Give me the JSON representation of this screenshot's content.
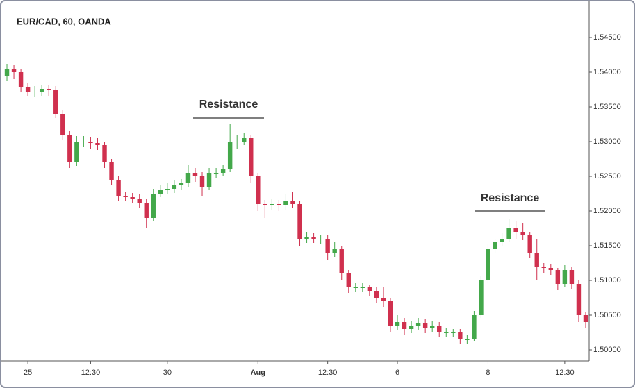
{
  "chart_data": {
    "type": "candlestick",
    "title": "EUR/CAD, 60, OANDA",
    "annotations": [
      "Resistance",
      "Resistance"
    ],
    "up_color": "#43a84a",
    "down_color": "#d0304e",
    "categories": [
      null,
      null,
      null,
      "25",
      null,
      null,
      null,
      null,
      null,
      null,
      null,
      null,
      "12:30",
      null,
      null,
      null,
      null,
      null,
      null,
      null,
      null,
      null,
      null,
      "30",
      null,
      null,
      null,
      null,
      null,
      null,
      null,
      null,
      null,
      null,
      null,
      null,
      "Aug",
      null,
      null,
      null,
      null,
      null,
      null,
      null,
      null,
      null,
      "12:30",
      null,
      null,
      null,
      null,
      null,
      null,
      null,
      null,
      null,
      "6",
      null,
      null,
      null,
      null,
      null,
      null,
      null,
      null,
      null,
      null,
      null,
      null,
      "8",
      null,
      null,
      null,
      null,
      null,
      null,
      null,
      null,
      null,
      null,
      "12:30",
      null,
      null,
      null
    ],
    "series": [
      {
        "open": [
          1.5395,
          1.5405,
          1.54,
          1.5378,
          1.5372,
          1.5372,
          1.5376,
          1.5375,
          1.534,
          1.531,
          1.527,
          1.53,
          1.53,
          1.5298,
          1.5295,
          1.527,
          1.5245,
          1.5222,
          1.522,
          1.5218,
          1.5212,
          1.519,
          1.5225,
          1.523,
          1.5232,
          1.5238,
          1.524,
          1.5255,
          1.525,
          1.5235,
          1.5255,
          1.5255,
          1.526,
          1.53,
          1.53,
          1.5305,
          1.525,
          1.521,
          1.5208,
          1.521,
          1.5208,
          1.5215,
          1.521,
          1.516,
          1.5162,
          1.516,
          1.516,
          1.514,
          1.5145,
          1.511,
          1.509,
          1.509,
          1.509,
          1.5085,
          1.5075,
          1.507,
          1.5035,
          1.504,
          1.503,
          1.5035,
          1.5038,
          1.5032,
          1.5035,
          1.5025,
          1.5025,
          1.5025,
          1.5015,
          1.5015,
          1.505,
          1.51,
          1.5145,
          1.5155,
          1.516,
          1.5175,
          1.517,
          1.5165,
          1.514,
          1.512,
          1.5118,
          1.5115,
          1.5095,
          1.5115,
          1.5095,
          1.505
        ],
        "high": [
          1.5412,
          1.541,
          1.5405,
          1.5385,
          1.538,
          1.5382,
          1.5382,
          1.538,
          1.5346,
          1.5315,
          1.5308,
          1.5308,
          1.5306,
          1.5305,
          1.53,
          1.5275,
          1.525,
          1.5228,
          1.5226,
          1.5224,
          1.5218,
          1.5232,
          1.5238,
          1.524,
          1.5244,
          1.5246,
          1.5266,
          1.5262,
          1.5256,
          1.5262,
          1.5262,
          1.5266,
          1.5325,
          1.531,
          1.5312,
          1.531,
          1.5255,
          1.5216,
          1.5218,
          1.5216,
          1.5224,
          1.5228,
          1.5215,
          1.517,
          1.5168,
          1.5166,
          1.5165,
          1.5155,
          1.515,
          1.5115,
          1.5096,
          1.5096,
          1.5094,
          1.509,
          1.509,
          1.5075,
          1.505,
          1.5046,
          1.5042,
          1.5046,
          1.5044,
          1.5042,
          1.504,
          1.5032,
          1.503,
          1.503,
          1.5022,
          1.5056,
          1.5106,
          1.5152,
          1.516,
          1.5168,
          1.5188,
          1.5185,
          1.5182,
          1.517,
          1.516,
          1.5125,
          1.5124,
          1.5118,
          1.5122,
          1.512,
          1.51,
          1.5055
        ],
        "low": [
          1.5388,
          1.539,
          1.5372,
          1.5365,
          1.5364,
          1.5366,
          1.5366,
          1.5334,
          1.5302,
          1.5262,
          1.5265,
          1.5292,
          1.529,
          1.5288,
          1.5262,
          1.5238,
          1.5215,
          1.5214,
          1.5212,
          1.5205,
          1.5176,
          1.5185,
          1.522,
          1.5224,
          1.5226,
          1.523,
          1.5234,
          1.5242,
          1.5222,
          1.523,
          1.5248,
          1.525,
          1.5256,
          1.529,
          1.5295,
          1.524,
          1.52,
          1.519,
          1.5202,
          1.52,
          1.5202,
          1.5204,
          1.515,
          1.5154,
          1.5154,
          1.5152,
          1.513,
          1.5134,
          1.51,
          1.5082,
          1.5084,
          1.5084,
          1.5078,
          1.5068,
          1.5062,
          1.5025,
          1.5028,
          1.5022,
          1.5024,
          1.5028,
          1.5024,
          1.5026,
          1.5018,
          1.5018,
          1.5018,
          1.5008,
          1.5008,
          1.5012,
          1.5046,
          1.5096,
          1.514,
          1.515,
          1.5155,
          1.516,
          1.5158,
          1.5132,
          1.51,
          1.511,
          1.5108,
          1.5086,
          1.509,
          1.5088,
          1.504,
          1.5032
        ],
        "close": [
          1.5405,
          1.54,
          1.5378,
          1.5372,
          1.5372,
          1.5376,
          1.5375,
          1.534,
          1.531,
          1.527,
          1.53,
          1.53,
          1.5298,
          1.5295,
          1.527,
          1.5245,
          1.5222,
          1.522,
          1.5218,
          1.5212,
          1.519,
          1.5225,
          1.523,
          1.5232,
          1.5238,
          1.524,
          1.5255,
          1.525,
          1.5235,
          1.5255,
          1.5255,
          1.526,
          1.53,
          1.53,
          1.5305,
          1.525,
          1.521,
          1.5208,
          1.521,
          1.5208,
          1.5215,
          1.521,
          1.516,
          1.5162,
          1.516,
          1.516,
          1.514,
          1.5145,
          1.511,
          1.509,
          1.509,
          1.509,
          1.5085,
          1.5075,
          1.507,
          1.5035,
          1.504,
          1.503,
          1.5035,
          1.5038,
          1.5032,
          1.5035,
          1.5025,
          1.5025,
          1.5025,
          1.5015,
          1.5015,
          1.505,
          1.51,
          1.5145,
          1.5155,
          1.516,
          1.5175,
          1.517,
          1.5165,
          1.514,
          1.512,
          1.5118,
          1.5115,
          1.5095,
          1.5115,
          1.5095,
          1.505,
          1.504
        ]
      }
    ],
    "ylim": [
      1.4984,
      1.5494
    ],
    "yticks": [
      {
        "value": 1.5,
        "label": "1.50000"
      },
      {
        "value": 1.505,
        "label": "1.50500"
      },
      {
        "value": 1.51,
        "label": "1.51000"
      },
      {
        "value": 1.515,
        "label": "1.51500"
      },
      {
        "value": 1.52,
        "label": "1.52000"
      },
      {
        "value": 1.525,
        "label": "1.52500"
      },
      {
        "value": 1.53,
        "label": "1.53000"
      },
      {
        "value": 1.535,
        "label": "1.53500"
      },
      {
        "value": 1.54,
        "label": "1.54000"
      },
      {
        "value": 1.545,
        "label": "1.54500"
      }
    ]
  }
}
